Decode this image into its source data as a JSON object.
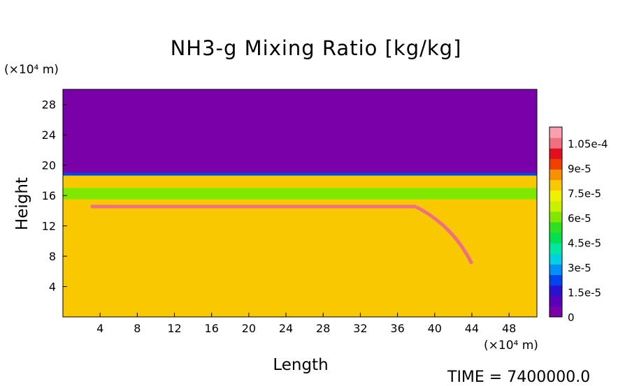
{
  "chart_data": {
    "type": "heatmap",
    "title": "NH3-g Mixing Ratio [kg/kg]",
    "xlabel": "Length",
    "ylabel": "Height",
    "x_unit": "(×10⁴ m)",
    "y_unit": "(×10⁴ m)",
    "xlim": [
      0,
      51
    ],
    "ylim": [
      0,
      30
    ],
    "x_ticks": [
      4,
      8,
      12,
      16,
      20,
      24,
      28,
      32,
      36,
      40,
      44,
      48
    ],
    "y_ticks": [
      4,
      8,
      12,
      16,
      20,
      24,
      28
    ],
    "colorbar": {
      "min": 0,
      "max": 0.000115,
      "tick_values": [
        0,
        1.5e-05,
        3e-05,
        4.5e-05,
        6e-05,
        7.5e-05,
        9e-05,
        0.000105
      ],
      "tick_labels": [
        "0",
        "1.5e-5",
        "3e-5",
        "4.5e-5",
        "6e-5",
        "7.5e-5",
        "9e-5",
        "1.05e-4"
      ]
    },
    "field_summary": {
      "above_level_height": 19,
      "above_value": 0,
      "lower_domain_value": 7.8e-05,
      "green_band_height": [
        15.5,
        17
      ],
      "green_band_value": 6e-05,
      "red_ridge_height": 14.5,
      "red_ridge_value": 0.000105
    },
    "time_label": "TIME = 7400000.0"
  },
  "colors": {
    "palette": [
      "#7a00aa",
      "#5a00b8",
      "#2a10d0",
      "#0044f0",
      "#0090f8",
      "#00d0e0",
      "#00e8a0",
      "#00e050",
      "#30e020",
      "#80e800",
      "#c8f000",
      "#f0f000",
      "#f8c800",
      "#f89000",
      "#f04000",
      "#e01020",
      "#f07080",
      "#f8a0b0"
    ]
  }
}
